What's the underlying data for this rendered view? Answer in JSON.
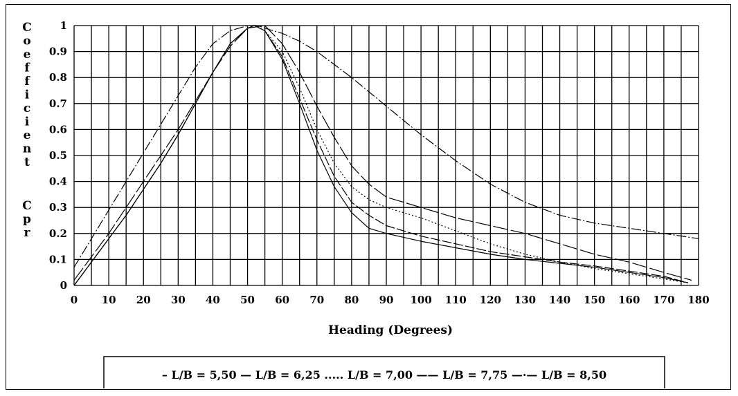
{
  "chart_data": {
    "type": "line",
    "title": "",
    "xlabel": "Heading (Degrees)",
    "ylabel": "Coefficient Cpr",
    "ylabel_vertical_parts": [
      "Coefficient",
      "Cpr"
    ],
    "xlim": [
      0,
      180
    ],
    "ylim": [
      0,
      1
    ],
    "xticks": [
      "0",
      "10",
      "20",
      "30",
      "40",
      "50",
      "60",
      "70",
      "80",
      "90",
      "100",
      "110",
      "120",
      "130",
      "140",
      "150",
      "160",
      "170",
      "180"
    ],
    "yticks": [
      "0",
      "0.1",
      "0.2",
      "0.3",
      "0.4",
      "0.5",
      "0.6",
      "0.7",
      "0.8",
      "0.9",
      "1"
    ],
    "grid": true,
    "grid_step_x": 5,
    "grid_step_y": 0.1,
    "legend_position": "bottom",
    "series": [
      {
        "name": "L/B = 5,50",
        "legend_marker": "–",
        "dash": "",
        "x": [
          0,
          5,
          10,
          15,
          20,
          25,
          30,
          35,
          40,
          45,
          50,
          52,
          55,
          60,
          65,
          70,
          75,
          80,
          85,
          90,
          100,
          110,
          120,
          130,
          140,
          150,
          160,
          170,
          177
        ],
        "y": [
          0,
          0.09,
          0.18,
          0.27,
          0.37,
          0.47,
          0.58,
          0.7,
          0.82,
          0.93,
          0.99,
          1.0,
          0.98,
          0.87,
          0.7,
          0.52,
          0.38,
          0.28,
          0.22,
          0.2,
          0.17,
          0.145,
          0.12,
          0.1,
          0.085,
          0.07,
          0.05,
          0.03,
          0.01
        ]
      },
      {
        "name": "L/B = 6,25",
        "legend_marker": "—",
        "dash": "14 3",
        "x": [
          0,
          5,
          10,
          15,
          20,
          25,
          30,
          35,
          40,
          45,
          50,
          52,
          55,
          60,
          65,
          70,
          75,
          80,
          85,
          90,
          100,
          110,
          120,
          130,
          140,
          150,
          160,
          170,
          177
        ],
        "y": [
          0,
          0.09,
          0.18,
          0.27,
          0.37,
          0.47,
          0.58,
          0.7,
          0.82,
          0.93,
          0.99,
          1.0,
          0.98,
          0.88,
          0.72,
          0.56,
          0.42,
          0.32,
          0.27,
          0.23,
          0.19,
          0.16,
          0.13,
          0.11,
          0.09,
          0.075,
          0.055,
          0.035,
          0.01
        ]
      },
      {
        "name": "L/B = 7,00",
        "legend_marker": ".....",
        "dash": "2 3",
        "x": [
          0,
          5,
          10,
          15,
          20,
          25,
          30,
          35,
          40,
          45,
          50,
          52,
          55,
          60,
          65,
          70,
          75,
          80,
          85,
          90,
          100,
          110,
          120,
          130,
          140,
          150,
          160,
          170,
          177
        ],
        "y": [
          0,
          0.09,
          0.18,
          0.27,
          0.37,
          0.47,
          0.58,
          0.7,
          0.82,
          0.93,
          0.99,
          1.0,
          0.98,
          0.9,
          0.76,
          0.6,
          0.47,
          0.38,
          0.33,
          0.3,
          0.26,
          0.21,
          0.16,
          0.12,
          0.09,
          0.065,
          0.045,
          0.025,
          0.01
        ]
      },
      {
        "name": "L/B = 7,75",
        "legend_marker": "——",
        "dash": "22 4",
        "x": [
          0,
          5,
          10,
          15,
          20,
          25,
          30,
          35,
          40,
          45,
          50,
          55,
          60,
          65,
          70,
          75,
          80,
          85,
          90,
          100,
          110,
          120,
          130,
          140,
          150,
          160,
          170,
          178
        ],
        "y": [
          0.02,
          0.11,
          0.2,
          0.3,
          0.4,
          0.5,
          0.6,
          0.71,
          0.82,
          0.92,
          0.99,
          1.0,
          0.93,
          0.82,
          0.69,
          0.57,
          0.46,
          0.39,
          0.34,
          0.3,
          0.26,
          0.23,
          0.2,
          0.16,
          0.12,
          0.09,
          0.05,
          0.02
        ]
      },
      {
        "name": "L/B = 8,50",
        "legend_marker": "—·—",
        "dash": "14 3 2 3",
        "x": [
          0,
          5,
          10,
          15,
          20,
          25,
          30,
          35,
          40,
          45,
          50,
          53,
          55,
          60,
          65,
          70,
          80,
          90,
          100,
          110,
          120,
          130,
          140,
          150,
          160,
          170,
          180
        ],
        "y": [
          0.07,
          0.18,
          0.29,
          0.4,
          0.51,
          0.62,
          0.73,
          0.84,
          0.93,
          0.98,
          1.0,
          1.0,
          0.99,
          0.97,
          0.94,
          0.9,
          0.8,
          0.69,
          0.58,
          0.48,
          0.39,
          0.32,
          0.27,
          0.24,
          0.22,
          0.2,
          0.18
        ]
      }
    ]
  }
}
